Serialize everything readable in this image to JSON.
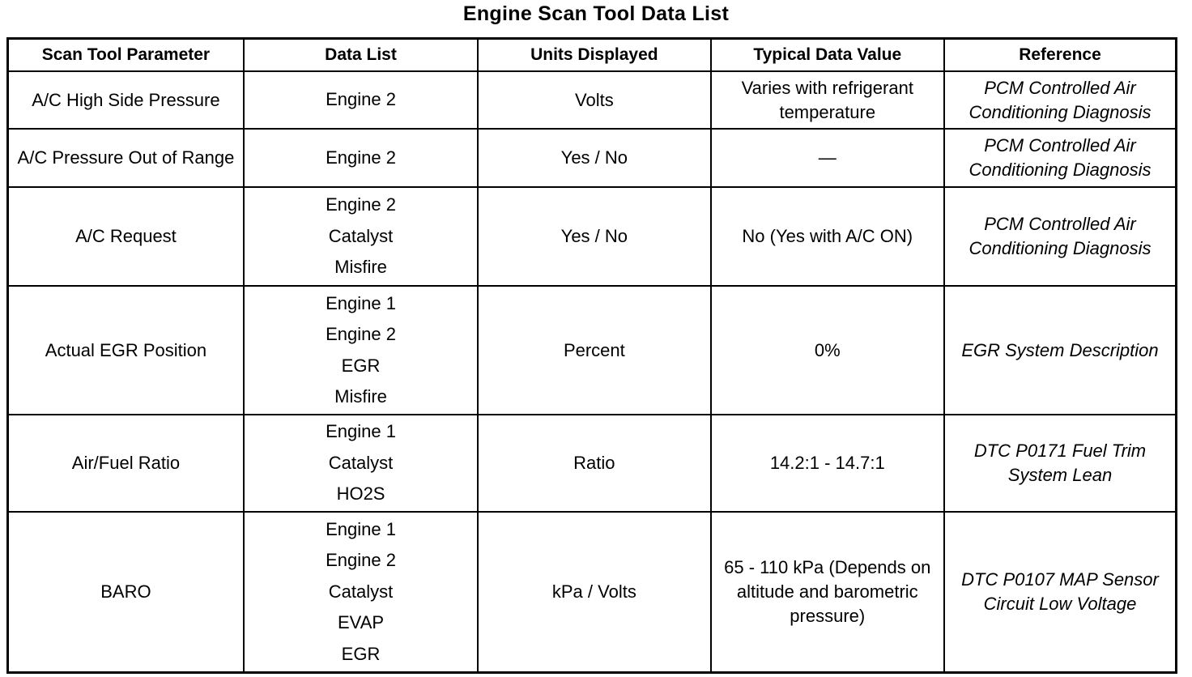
{
  "title": "Engine Scan Tool Data List",
  "headers": [
    "Scan Tool Parameter",
    "Data List",
    "Units Displayed",
    "Typical Data Value",
    "Reference"
  ],
  "rows": [
    {
      "parameter": "A/C High Side Pressure",
      "data_list": [
        "Engine 2"
      ],
      "units": "Volts",
      "typical": "Varies with refrigerant temperature",
      "reference": "PCM Controlled Air Conditioning Diagnosis"
    },
    {
      "parameter": "A/C Pressure Out of Range",
      "data_list": [
        "Engine 2"
      ],
      "units": "Yes / No",
      "typical": "—",
      "reference": "PCM Controlled Air Conditioning Diagnosis"
    },
    {
      "parameter": "A/C Request",
      "data_list": [
        "Engine 2",
        "Catalyst",
        "Misfire"
      ],
      "units": "Yes / No",
      "typical": "No (Yes with A/C ON)",
      "reference": "PCM Controlled Air Conditioning Diagnosis"
    },
    {
      "parameter": "Actual EGR Position",
      "data_list": [
        "Engine 1",
        "Engine 2",
        "EGR",
        "Misfire"
      ],
      "units": "Percent",
      "typical": "0%",
      "reference": "EGR System Description"
    },
    {
      "parameter": "Air/Fuel Ratio",
      "data_list": [
        "Engine 1",
        "Catalyst",
        "HO2S"
      ],
      "units": "Ratio",
      "typical": "14.2:1 - 14.7:1",
      "reference": "DTC P0171 Fuel Trim System Lean"
    },
    {
      "parameter": "BARO",
      "data_list": [
        "Engine 1",
        "Engine 2",
        "Catalyst",
        "EVAP",
        "EGR"
      ],
      "units": "kPa / Volts",
      "typical": "65 - 110 kPa (Depends on altitude and barometric pressure)",
      "reference": "DTC P0107 MAP Sensor Circuit Low Voltage"
    }
  ]
}
